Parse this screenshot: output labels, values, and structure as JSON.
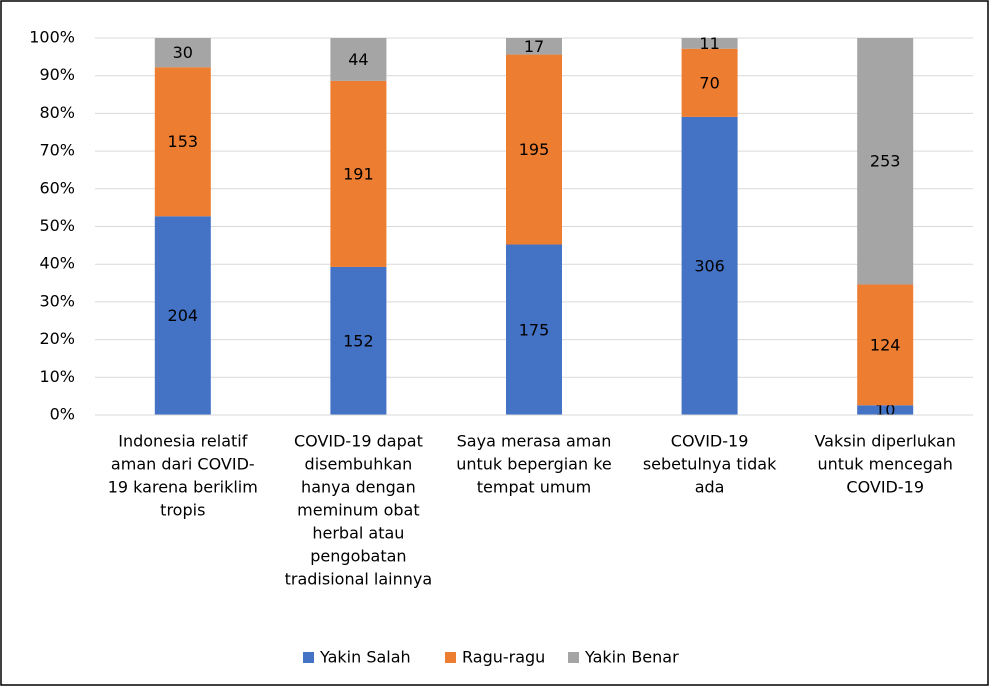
{
  "chart_data": {
    "type": "bar",
    "stacking": "percent",
    "categories": [
      [
        "Indonesia relatif",
        "aman dari COVID-",
        "19 karena beriklim",
        "tropis"
      ],
      [
        "COVID-19 dapat",
        "disembuhkan",
        "hanya dengan",
        "meminum obat",
        "herbal atau",
        "pengobatan",
        "tradisional lainnya"
      ],
      [
        "Saya merasa aman",
        "untuk bepergian ke",
        "tempat umum"
      ],
      [
        "COVID-19",
        "sebetulnya tidak",
        "ada"
      ],
      [
        "Vaksin diperlukan",
        "untuk mencegah",
        "COVID-19"
      ]
    ],
    "series": [
      {
        "name": "Yakin Salah",
        "color": "#4472c4",
        "values": [
          204,
          152,
          175,
          306,
          10
        ]
      },
      {
        "name": "Ragu-ragu",
        "color": "#ed7d31",
        "values": [
          153,
          191,
          195,
          70,
          124
        ]
      },
      {
        "name": "Yakin Benar",
        "color": "#a5a5a5",
        "values": [
          30,
          44,
          17,
          11,
          253
        ]
      }
    ],
    "ylim": [
      0,
      100
    ],
    "yticks": [
      {
        "value": 0,
        "label": "0%"
      },
      {
        "value": 10,
        "label": "10%"
      },
      {
        "value": 20,
        "label": "20%"
      },
      {
        "value": 30,
        "label": "30%"
      },
      {
        "value": 40,
        "label": "40%"
      },
      {
        "value": 50,
        "label": "50%"
      },
      {
        "value": 60,
        "label": "60%"
      },
      {
        "value": 70,
        "label": "70%"
      },
      {
        "value": 80,
        "label": "80%"
      },
      {
        "value": 90,
        "label": "90%"
      },
      {
        "value": 100,
        "label": "100%"
      }
    ],
    "grid": true,
    "legend": "bottom"
  }
}
